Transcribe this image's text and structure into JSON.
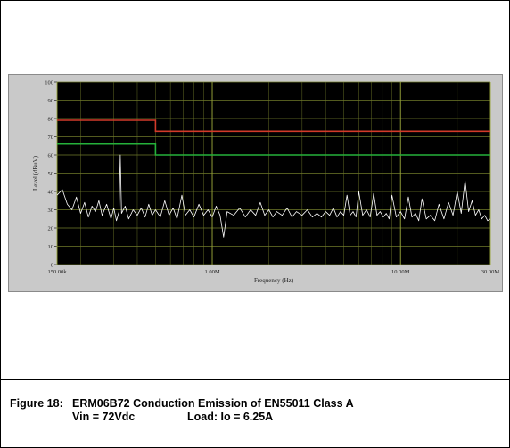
{
  "caption": {
    "figure_label": "Figure 18:",
    "title": "ERM06B72 Conduction Emission of EN55011 Class A",
    "vin": "Vin = 72Vdc",
    "load": "Load: Io = 6.25A"
  },
  "colors": {
    "plot_background": "#000000",
    "panel_background": "#c9c9c9",
    "grid": "#6f7a2a",
    "limit_quasi_peak": "#d23a2a",
    "limit_average": "#25b13a",
    "trace": "#ffffff"
  },
  "chart_data": {
    "type": "line",
    "title": "",
    "xlabel": "Frequency (Hz)",
    "ylabel": "Level (dBuV)",
    "x_scale": "log",
    "xlim": [
      150000,
      30000000
    ],
    "ylim": [
      0,
      100
    ],
    "x_ticks": [
      {
        "value": 150000,
        "label": "150.00k"
      },
      {
        "value": 1000000,
        "label": "1.00M"
      },
      {
        "value": 10000000,
        "label": "10.00M"
      },
      {
        "value": 30000000,
        "label": "30.00M"
      }
    ],
    "y_ticks": [
      0,
      10,
      20,
      30,
      40,
      50,
      60,
      70,
      80,
      90,
      100
    ],
    "grid": true,
    "limits": [
      {
        "points": [
          [
            150000,
            79
          ],
          [
            500000,
            79
          ],
          [
            500000,
            73
          ],
          [
            30000000,
            73
          ]
        ]
      },
      {
        "points": [
          [
            150000,
            66
          ],
          [
            500000,
            66
          ],
          [
            500000,
            60
          ],
          [
            30000000,
            60
          ]
        ]
      }
    ],
    "series": [
      {
        "points": [
          [
            150000,
            38
          ],
          [
            160000,
            41
          ],
          [
            170000,
            33
          ],
          [
            180000,
            30
          ],
          [
            190000,
            37
          ],
          [
            200000,
            28
          ],
          [
            210000,
            34
          ],
          [
            220000,
            26
          ],
          [
            230000,
            32
          ],
          [
            240000,
            29
          ],
          [
            250000,
            35
          ],
          [
            260000,
            27
          ],
          [
            275000,
            33
          ],
          [
            290000,
            25
          ],
          [
            300000,
            31
          ],
          [
            310000,
            24
          ],
          [
            320000,
            29
          ],
          [
            325000,
            60
          ],
          [
            330000,
            28
          ],
          [
            345000,
            32
          ],
          [
            360000,
            25
          ],
          [
            380000,
            30
          ],
          [
            400000,
            27
          ],
          [
            420000,
            31
          ],
          [
            440000,
            26
          ],
          [
            460000,
            33
          ],
          [
            480000,
            27
          ],
          [
            500000,
            30
          ],
          [
            530000,
            26
          ],
          [
            560000,
            35
          ],
          [
            590000,
            27
          ],
          [
            620000,
            31
          ],
          [
            650000,
            25
          ],
          [
            690000,
            38
          ],
          [
            720000,
            27
          ],
          [
            760000,
            30
          ],
          [
            800000,
            26
          ],
          [
            850000,
            33
          ],
          [
            900000,
            27
          ],
          [
            950000,
            30
          ],
          [
            1000000,
            26
          ],
          [
            1050000,
            32
          ],
          [
            1100000,
            27
          ],
          [
            1150000,
            15
          ],
          [
            1200000,
            29
          ],
          [
            1300000,
            27
          ],
          [
            1400000,
            31
          ],
          [
            1500000,
            26
          ],
          [
            1600000,
            30
          ],
          [
            1700000,
            27
          ],
          [
            1800000,
            34
          ],
          [
            1900000,
            27
          ],
          [
            2000000,
            30
          ],
          [
            2100000,
            26
          ],
          [
            2200000,
            29
          ],
          [
            2350000,
            27
          ],
          [
            2500000,
            31
          ],
          [
            2650000,
            26
          ],
          [
            2800000,
            29
          ],
          [
            3000000,
            27
          ],
          [
            3200000,
            30
          ],
          [
            3400000,
            26
          ],
          [
            3600000,
            28
          ],
          [
            3800000,
            26
          ],
          [
            4000000,
            29
          ],
          [
            4200000,
            27
          ],
          [
            4400000,
            31
          ],
          [
            4600000,
            26
          ],
          [
            4800000,
            29
          ],
          [
            5000000,
            27
          ],
          [
            5200000,
            38
          ],
          [
            5400000,
            27
          ],
          [
            5600000,
            29
          ],
          [
            5800000,
            26
          ],
          [
            6000000,
            40
          ],
          [
            6300000,
            27
          ],
          [
            6600000,
            30
          ],
          [
            6900000,
            26
          ],
          [
            7200000,
            39
          ],
          [
            7500000,
            27
          ],
          [
            7800000,
            29
          ],
          [
            8100000,
            26
          ],
          [
            8400000,
            28
          ],
          [
            8700000,
            25
          ],
          [
            9000000,
            38
          ],
          [
            9500000,
            26
          ],
          [
            10000000,
            29
          ],
          [
            10500000,
            25
          ],
          [
            11000000,
            37
          ],
          [
            11500000,
            26
          ],
          [
            12000000,
            28
          ],
          [
            12500000,
            24
          ],
          [
            13000000,
            36
          ],
          [
            13700000,
            25
          ],
          [
            14400000,
            27
          ],
          [
            15200000,
            24
          ],
          [
            16000000,
            33
          ],
          [
            17000000,
            25
          ],
          [
            18000000,
            34
          ],
          [
            19000000,
            27
          ],
          [
            20000000,
            40
          ],
          [
            21000000,
            28
          ],
          [
            22000000,
            46
          ],
          [
            23000000,
            29
          ],
          [
            24000000,
            35
          ],
          [
            25000000,
            27
          ],
          [
            26000000,
            30
          ],
          [
            27000000,
            25
          ],
          [
            28000000,
            27
          ],
          [
            29000000,
            24
          ],
          [
            30000000,
            25
          ]
        ]
      }
    ]
  }
}
